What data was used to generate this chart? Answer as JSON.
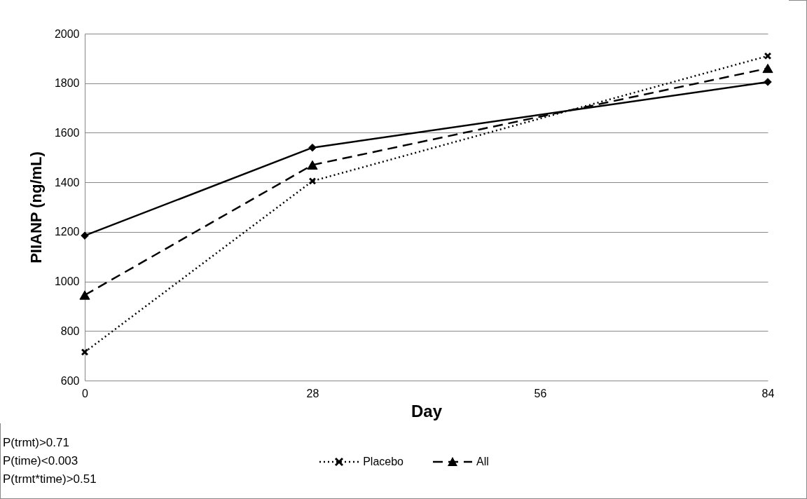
{
  "chart_data": {
    "type": "line",
    "xlabel": "Day",
    "ylabel": "PIIANP (ng/mL)",
    "x": [
      0,
      28,
      84
    ],
    "series": [
      {
        "color": "#000000",
        "values": [
          1185,
          1540,
          1805
        ],
        "line_style": "solid",
        "marker": "diamond"
      },
      {
        "name": "Placebo",
        "color": "#000000",
        "values": [
          715,
          1405,
          1910
        ],
        "line_style": "dotted",
        "marker": "cross"
      },
      {
        "name": "All",
        "color": "#000000",
        "values": [
          945,
          1470,
          1860
        ],
        "line_style": "dashed",
        "marker": "triangle"
      }
    ],
    "xlim": [
      0,
      84
    ],
    "xticks": [
      0,
      28,
      56,
      84
    ],
    "ylim": [
      600,
      2000
    ],
    "yticks": [
      600,
      800,
      1000,
      1200,
      1400,
      1600,
      1800,
      2000
    ],
    "grid": "y",
    "legend": "bottom",
    "annotations": [
      "P(trmt)>0.71",
      "P(time)<0.003",
      "P(trmt*time)>0.51"
    ]
  }
}
